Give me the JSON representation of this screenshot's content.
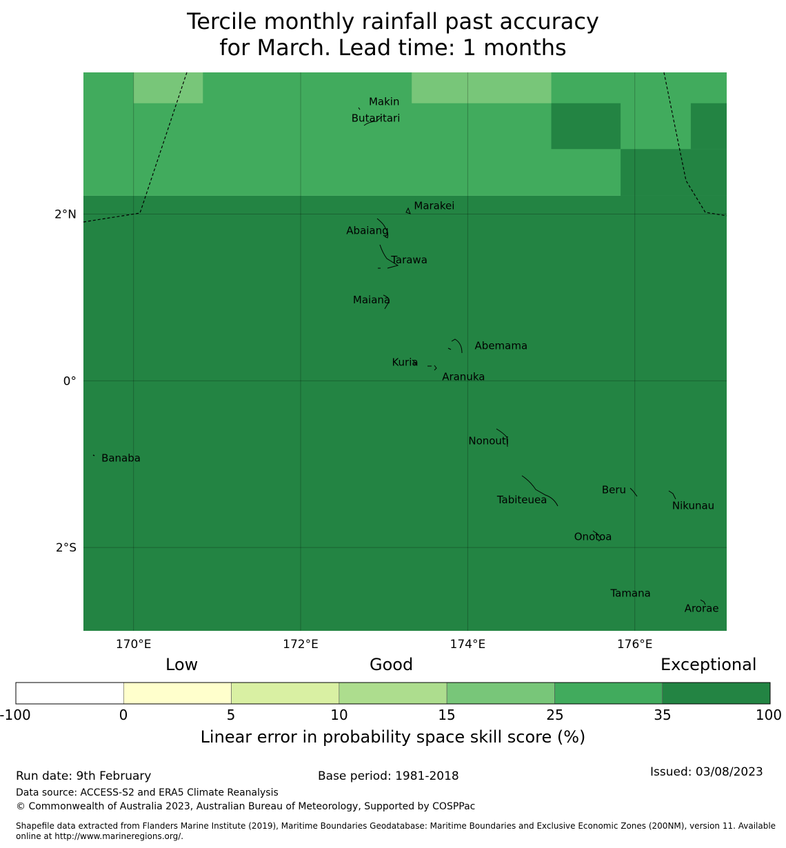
{
  "title": {
    "line1": "Tercile monthly rainfall past accuracy",
    "line2": "for March. Lead time: 1 months"
  },
  "map": {
    "lon_range": [
      169.4,
      177.1
    ],
    "lat_range": [
      -3.0,
      3.7
    ],
    "lon_ticks": [
      {
        "value": 170,
        "label": "170°E"
      },
      {
        "value": 172,
        "label": "172°E"
      },
      {
        "value": 174,
        "label": "174°E"
      },
      {
        "value": 176,
        "label": "176°E"
      }
    ],
    "lat_ticks": [
      {
        "value": 2,
        "label": "2°N"
      },
      {
        "value": 0,
        "label": "0°"
      },
      {
        "value": -2,
        "label": "2°S"
      }
    ],
    "islands": [
      {
        "name": "Makin",
        "lon": 173.0,
        "lat": 3.35
      },
      {
        "name": "Butaritari",
        "lon": 172.9,
        "lat": 3.15
      },
      {
        "name": "Marakei",
        "lon": 173.6,
        "lat": 2.1
      },
      {
        "name": "Abaiang",
        "lon": 172.8,
        "lat": 1.8
      },
      {
        "name": "Tarawa",
        "lon": 173.3,
        "lat": 1.45
      },
      {
        "name": "Maiana",
        "lon": 172.85,
        "lat": 0.97
      },
      {
        "name": "Abemama",
        "lon": 174.4,
        "lat": 0.42
      },
      {
        "name": "Kuria",
        "lon": 173.25,
        "lat": 0.22
      },
      {
        "name": "Aranuka",
        "lon": 173.95,
        "lat": 0.05
      },
      {
        "name": "Nonouti",
        "lon": 174.25,
        "lat": -0.72
      },
      {
        "name": "Banaba",
        "lon": 169.85,
        "lat": -0.93
      },
      {
        "name": "Beru",
        "lon": 175.75,
        "lat": -1.31
      },
      {
        "name": "Tabiteuea",
        "lon": 174.65,
        "lat": -1.43
      },
      {
        "name": "Nikunau",
        "lon": 176.7,
        "lat": -1.5
      },
      {
        "name": "Onotoa",
        "lon": 175.5,
        "lat": -1.87
      },
      {
        "name": "Tamana",
        "lon": 175.95,
        "lat": -2.55
      },
      {
        "name": "Arorae",
        "lon": 176.8,
        "lat": -2.73
      }
    ],
    "skill_cells": [
      {
        "lon0": 169.4,
        "lon1": 177.1,
        "lat0": 2.22,
        "lat1": 3.7,
        "category": "25-35"
      },
      {
        "lon0": 169.4,
        "lon1": 177.1,
        "lat0": -3.0,
        "lat1": 2.22,
        "category": "35-100"
      },
      {
        "lon0": 175.83,
        "lon1": 177.1,
        "lat0": 2.22,
        "lat1": 2.78,
        "category": "35-100"
      },
      {
        "lon0": 176.67,
        "lon1": 177.1,
        "lat0": 2.78,
        "lat1": 3.33,
        "category": "35-100"
      },
      {
        "lon0": 175.0,
        "lon1": 175.83,
        "lat0": 2.78,
        "lat1": 3.33,
        "category": "35-100"
      },
      {
        "lon0": 170.0,
        "lon1": 170.83,
        "lat0": 3.33,
        "lat1": 3.7,
        "category": "15-25"
      },
      {
        "lon0": 173.33,
        "lon1": 175.0,
        "lat0": 3.33,
        "lat1": 3.7,
        "category": "15-25"
      }
    ]
  },
  "colorbar": {
    "headings": [
      "Low",
      "Good",
      "Exceptional"
    ],
    "bins": [
      {
        "range": "-100 to 0",
        "color": "#ffffff"
      },
      {
        "range": "0 to 5",
        "color": "#ffffcc"
      },
      {
        "range": "5 to 10",
        "color": "#d9f0a3"
      },
      {
        "range": "10 to 15",
        "color": "#addd8e"
      },
      {
        "range": "15 to 25",
        "color": "#78c679"
      },
      {
        "range": "25 to 35",
        "color": "#41ab5d"
      },
      {
        "range": "35 to 100",
        "color": "#238443"
      }
    ],
    "ticks": [
      "-100",
      "0",
      "5",
      "10",
      "15",
      "25",
      "35",
      "100"
    ],
    "label": "Linear error in probability space skill score (%)"
  },
  "footer": {
    "run_date": "Run date: 9th February",
    "base_period": "Base period: 1981-2018",
    "issued": "Issued: 03/08/2023",
    "data_source": "Data source: ACCESS-S2 and ERA5 Climate Reanalysis",
    "copyright": "© Commonwealth of Australia 2023, Australian Bureau of Meteorology, Supported by COSPPac",
    "shapefile": "Shapefile data extracted from Flanders Marine Institute (2019), Maritime Boundaries Geodatabase: Maritime Boundaries and Exclusive Economic Zones (200NM), version 11. Available online at http://www.marineregions.org/."
  }
}
